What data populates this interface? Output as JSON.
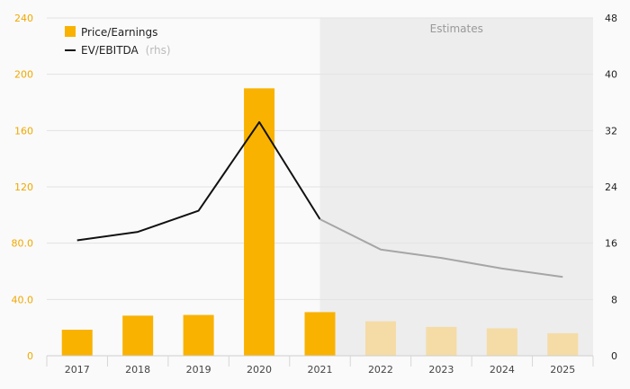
{
  "chart_data": {
    "type": "bar",
    "categories": [
      "2017",
      "2018",
      "2019",
      "2020",
      "2021",
      "2022",
      "2023",
      "2024",
      "2025"
    ],
    "series": [
      {
        "name": "Price/Earnings",
        "type": "bar",
        "axis": "left",
        "values": [
          18.5,
          28.5,
          29.0,
          190.0,
          31.0,
          24.5,
          20.5,
          19.5,
          16.0
        ],
        "estimate_from_index": 5
      },
      {
        "name": "EV/EBITDA",
        "name_suffix": "(rhs)",
        "type": "line",
        "axis": "right",
        "values": [
          16.4,
          17.6,
          20.6,
          33.2,
          19.4,
          15.1,
          13.9,
          12.4,
          11.2
        ],
        "estimate_from_index": 4
      }
    ],
    "y_left": {
      "ticks": [
        "0",
        "40.0",
        "80.0",
        "120",
        "160",
        "200",
        "240"
      ],
      "min": 0,
      "max": 240
    },
    "y_right": {
      "ticks": [
        "0",
        "8",
        "16",
        "24",
        "32",
        "40",
        "48"
      ],
      "min": 0,
      "max": 48
    },
    "estimates_label": "Estimates",
    "grid": true,
    "legend_placement": "top-left",
    "colors": {
      "bar": "#f9b200",
      "bar_estimate": "#f5dca6",
      "line": "#111111",
      "line_estimate": "#a6a6a6",
      "estimate_bg": "#ededed",
      "grid": "#e2e2e2",
      "left_tick": "#f0a800"
    }
  }
}
